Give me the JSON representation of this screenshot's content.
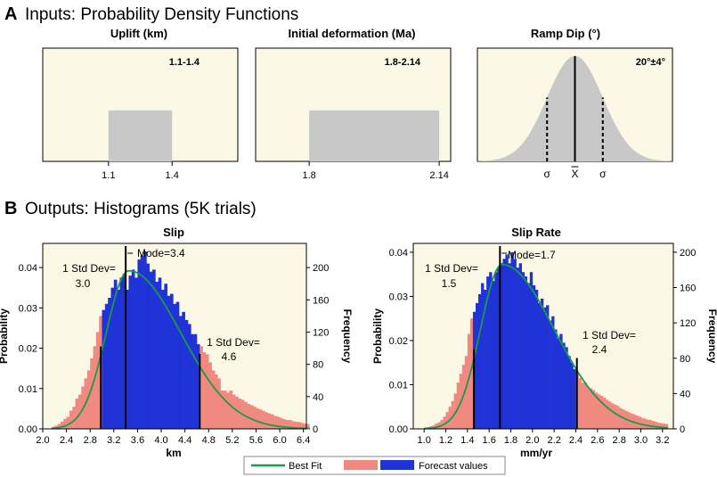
{
  "section_a": {
    "letter": "A",
    "title": "Inputs: Probability Density Functions"
  },
  "section_b": {
    "letter": "B",
    "title": "Outputs: Histograms (5K trials)"
  },
  "colors": {
    "panel_bg": "#fbf9e6",
    "input_fill": "#c8c8c8",
    "outside_fill": "#f08a80",
    "inside_fill": "#1f33d6",
    "best_fit": "#1a9a4a",
    "marker": "#000000"
  },
  "chart_data": [
    {
      "id": "uplift",
      "type": "uniform_pdf",
      "title": "Uplift (km)",
      "range_label": "1.1-1.4",
      "min": 1.1,
      "max": 1.4,
      "xlim": [
        0.79,
        1.71
      ],
      "tick_labels": [
        "1.1",
        "1.4"
      ]
    },
    {
      "id": "initial_deformation",
      "type": "uniform_pdf",
      "title": "Initial deformation (Ma)",
      "range_label": "1.8-2.14",
      "min": 1.8,
      "max": 2.14,
      "xlim": [
        1.66,
        2.17
      ],
      "tick_labels": [
        "1.8",
        "2.14"
      ]
    },
    {
      "id": "ramp_dip",
      "type": "normal_pdf",
      "title": "Ramp Dip (°)",
      "range_label": "20°±4°",
      "mean": 20,
      "std": 4,
      "xlim": [
        6,
        34
      ],
      "marker_labels": [
        "σ",
        "X",
        "σ"
      ]
    },
    {
      "id": "slip",
      "type": "histogram",
      "title": "Slip",
      "xlabel": "km",
      "ylabel": "Probability",
      "ylabel_right": "Frequency",
      "xlim": [
        2.0,
        6.45
      ],
      "ylim": [
        0,
        0.046
      ],
      "ylim_right": [
        0,
        230
      ],
      "x_ticks": [
        "2.0",
        "2.4",
        "2.8",
        "3.2",
        "3.6",
        "4.0",
        "4.4",
        "4.8",
        "5.2",
        "5.6",
        "6.0",
        "6.4"
      ],
      "y_ticks": [
        "0.00",
        "0.01",
        "0.02",
        "0.03",
        "0.04"
      ],
      "y_ticks_right": [
        "0",
        "40",
        "80",
        "120",
        "160",
        "200"
      ],
      "bin_start": 2.15,
      "bin_width": 0.05,
      "values": [
        0.0005,
        0.0008,
        0.0012,
        0.0018,
        0.0025,
        0.003,
        0.0045,
        0.0055,
        0.0075,
        0.0085,
        0.0105,
        0.0125,
        0.0145,
        0.0175,
        0.0205,
        0.024,
        0.028,
        0.0295,
        0.031,
        0.0325,
        0.035,
        0.037,
        0.0345,
        0.0375,
        0.0385,
        0.0345,
        0.038,
        0.0395,
        0.0375,
        0.042,
        0.043,
        0.044,
        0.041,
        0.039,
        0.0395,
        0.0365,
        0.0375,
        0.0345,
        0.036,
        0.033,
        0.0335,
        0.031,
        0.0315,
        0.028,
        0.029,
        0.027,
        0.026,
        0.0235,
        0.0235,
        0.021,
        0.0205,
        0.019,
        0.0185,
        0.0165,
        0.0145,
        0.0135,
        0.0125,
        0.0095,
        0.0095,
        0.009,
        0.0095,
        0.0085,
        0.008,
        0.0075,
        0.0072,
        0.0067,
        0.0062,
        0.0059,
        0.0055,
        0.0051,
        0.0048,
        0.0045,
        0.0041,
        0.0038,
        0.0036,
        0.0032,
        0.003,
        0.0027,
        0.0024,
        0.0022,
        0.0022,
        0.0019,
        0.0018,
        0.0017,
        0.0015,
        0.0013,
        0.0012
      ],
      "fit_peak": 3.45,
      "fit_sigma_left": 0.38,
      "fit_sigma_right": 0.88,
      "fit_max": 0.0392,
      "std_low": 2.98,
      "std_high": 4.65,
      "mode": 3.4,
      "annotations": {
        "std_low_line1": "1 Std Dev=",
        "std_low_line2": "3.0",
        "mode": "Mode=3.4",
        "std_high_line1": "1 Std Dev=",
        "std_high_line2": "4.6"
      }
    },
    {
      "id": "slip_rate",
      "type": "histogram",
      "title": "Slip Rate",
      "xlabel": "mm/yr",
      "ylabel": "Probability",
      "ylabel_right": "Frequency",
      "xlim": [
        0.9,
        3.3
      ],
      "ylim": [
        0,
        0.042
      ],
      "ylim_right": [
        0,
        210
      ],
      "x_ticks": [
        "1.0",
        "1.2",
        "1.4",
        "1.6",
        "1.8",
        "2.0",
        "2.2",
        "2.4",
        "2.6",
        "2.8",
        "3.0",
        "3.2"
      ],
      "y_ticks": [
        "0.00",
        "0.01",
        "0.02",
        "0.03",
        "0.04"
      ],
      "y_ticks_right": [
        "0",
        "40",
        "80",
        "120",
        "160",
        "200"
      ],
      "bin_start": 1.0,
      "bin_width": 0.025,
      "values": [
        0.0003,
        0.0004,
        0.0006,
        0.0008,
        0.0012,
        0.0015,
        0.002,
        0.0028,
        0.0038,
        0.005,
        0.0063,
        0.008,
        0.0105,
        0.0125,
        0.0145,
        0.0165,
        0.0215,
        0.025,
        0.0265,
        0.0285,
        0.0305,
        0.033,
        0.0315,
        0.0345,
        0.0355,
        0.0335,
        0.0355,
        0.0365,
        0.0375,
        0.0385,
        0.0395,
        0.0375,
        0.04,
        0.0385,
        0.0365,
        0.0375,
        0.0355,
        0.0345,
        0.033,
        0.0355,
        0.0325,
        0.0315,
        0.0285,
        0.0295,
        0.0275,
        0.028,
        0.0245,
        0.0255,
        0.0225,
        0.0205,
        0.0215,
        0.0195,
        0.0185,
        0.0165,
        0.015,
        0.0135,
        0.0125,
        0.0115,
        0.0105,
        0.0105,
        0.0095,
        0.0092,
        0.0088,
        0.0082,
        0.0078,
        0.0075,
        0.0071,
        0.0066,
        0.0062,
        0.0058,
        0.0055,
        0.0052,
        0.0047,
        0.0044,
        0.0041,
        0.0038,
        0.0035,
        0.0033,
        0.003,
        0.0028,
        0.0025,
        0.0023,
        0.0021,
        0.002,
        0.0018,
        0.0016,
        0.0014,
        0.0013,
        0.0012,
        0.0011
      ],
      "fit_peak": 1.72,
      "fit_sigma_left": 0.2,
      "fit_sigma_right": 0.48,
      "fit_max": 0.0372,
      "std_low": 1.46,
      "std_high": 2.41,
      "mode": 1.7,
      "annotations": {
        "std_low_line1": "1 Std Dev=",
        "std_low_line2": "1.5",
        "mode": "Mode=1.7",
        "std_high_line1": "1 Std Dev=",
        "std_high_line2": "2.4"
      }
    }
  ],
  "legend": {
    "best_fit": "Best Fit",
    "forecast": "Forecast values"
  }
}
